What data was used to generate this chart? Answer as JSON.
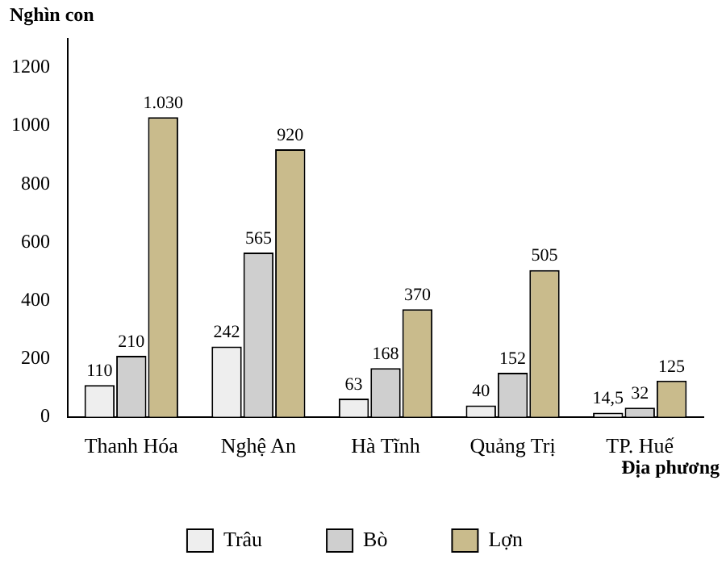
{
  "chart_data": {
    "type": "bar",
    "xlabel": "Địa phương",
    "ylabel": "Nghìn con",
    "categories": [
      "Thanh Hóa",
      "Nghệ An",
      "Hà Tĩnh",
      "Quảng Trị",
      "TP. Huế"
    ],
    "series": [
      {
        "name": "Trâu",
        "color": "#eeeeee",
        "values": [
          110,
          242,
          63,
          40,
          14.5
        ],
        "value_labels": [
          "110",
          "242",
          "63",
          "40",
          "14,5"
        ]
      },
      {
        "name": "Bò",
        "color": "#cfcfcf",
        "values": [
          210,
          565,
          168,
          152,
          32
        ],
        "value_labels": [
          "210",
          "565",
          "168",
          "152",
          "32"
        ]
      },
      {
        "name": "Lợn",
        "color": "#c9bb8c",
        "values": [
          1030,
          920,
          370,
          505,
          125
        ],
        "value_labels": [
          "1.030",
          "920",
          "370",
          "505",
          "125"
        ]
      }
    ],
    "ylim": [
      0,
      1300
    ],
    "yticks": [
      0,
      200,
      400,
      600,
      800,
      1000,
      1200
    ],
    "grid": false,
    "legend": "bottom"
  }
}
